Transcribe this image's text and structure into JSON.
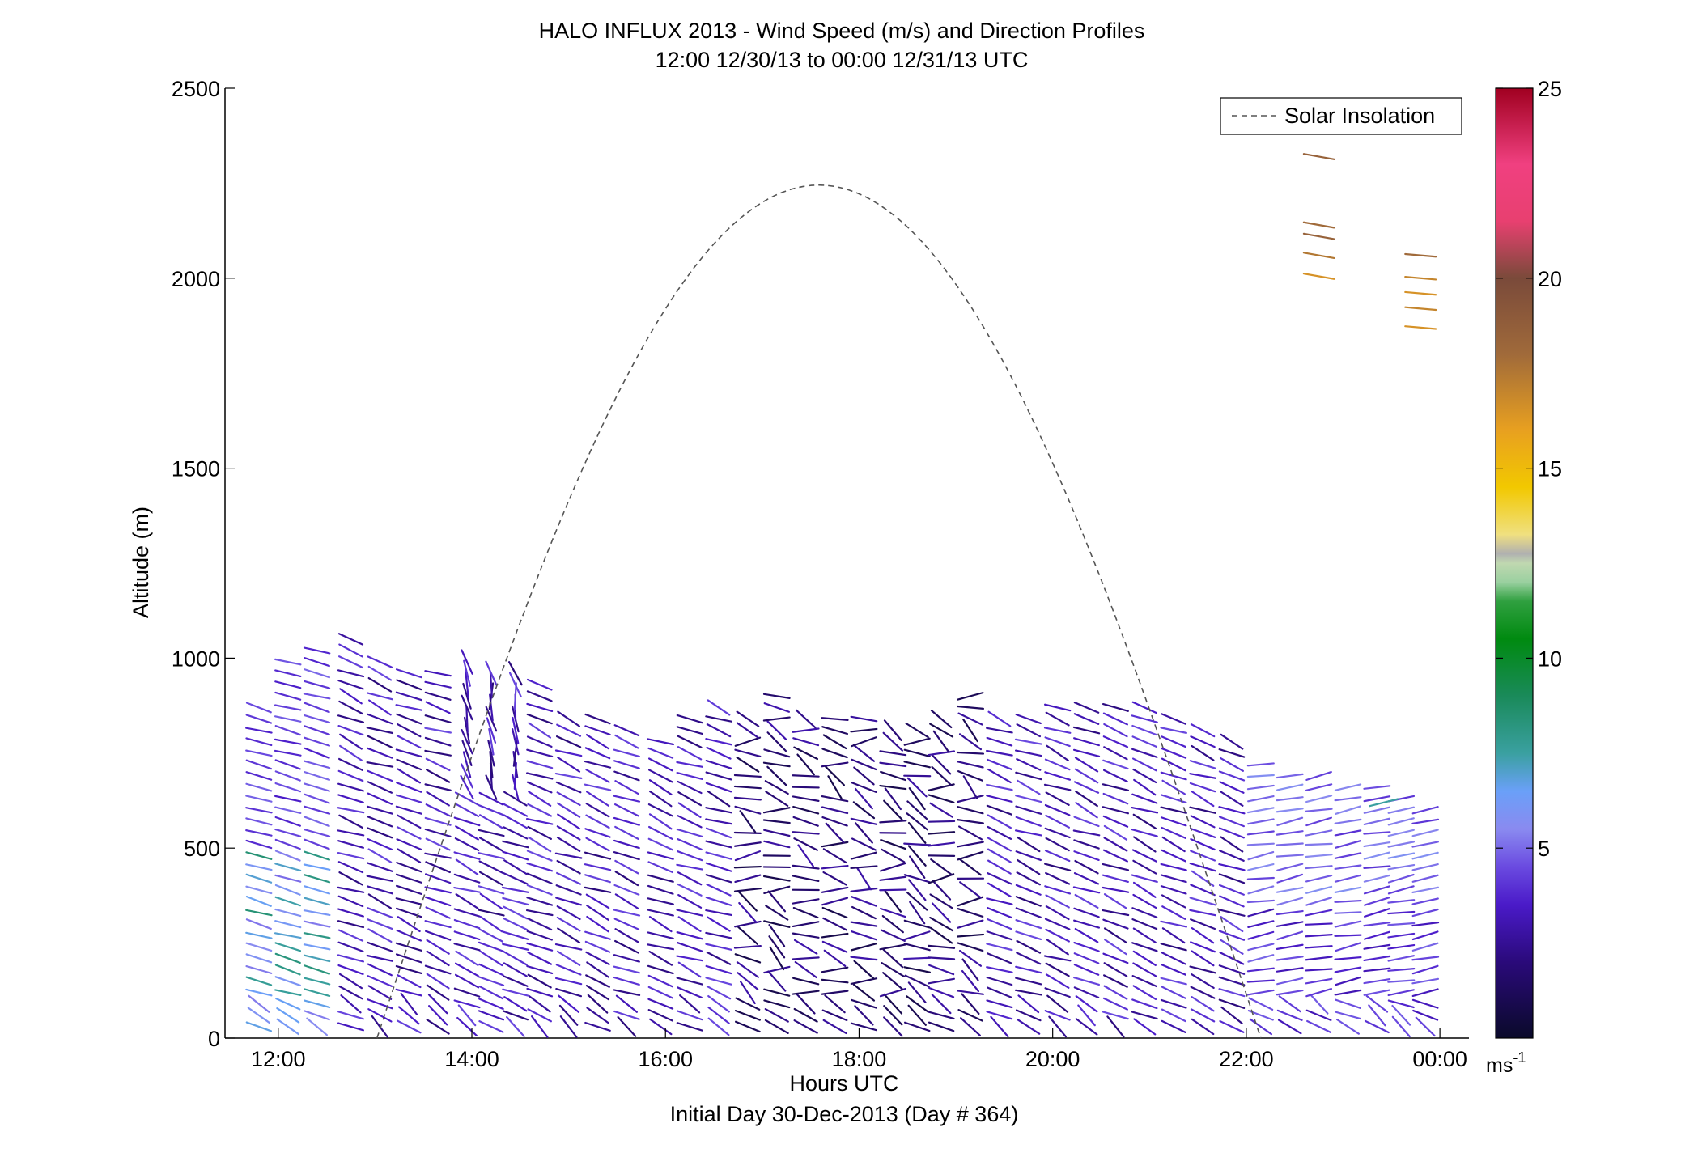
{
  "chart_data": {
    "type": "quiver",
    "title": "HALO INFLUX 2013 - Wind Speed (m/s) and Direction Profiles",
    "subtitle": "12:00 12/30/13 to 00:00 12/31/13  UTC",
    "xlabel": "Hours UTC",
    "xlabel2": "Initial Day 30-Dec-2013 (Day # 364)",
    "ylabel": "Altitude (m)",
    "xlim": [
      11.45,
      24.3
    ],
    "ylim": [
      0,
      2500
    ],
    "xticks": [
      12,
      14,
      16,
      18,
      20,
      22,
      24
    ],
    "xtick_labels": [
      "12:00",
      "14:00",
      "16:00",
      "18:00",
      "20:00",
      "22:00",
      "00:00"
    ],
    "yticks": [
      0,
      500,
      1000,
      1500,
      2000,
      2500
    ],
    "ytick_labels": [
      "0",
      "500",
      "1000",
      "1500",
      "2000",
      "2500"
    ],
    "legend": {
      "label": "Solar Insolation",
      "position": "top-right"
    },
    "colorbar": {
      "range": [
        0,
        25
      ],
      "ticks": [
        5,
        10,
        15,
        20,
        25
      ],
      "tick_labels": [
        "5",
        "10",
        "15",
        "20",
        "25"
      ],
      "unit": "ms",
      "unit_sup": "-1",
      "stops": [
        [
          0,
          "#0a0a2a"
        ],
        [
          0.08,
          "#2a0a7a"
        ],
        [
          0.14,
          "#4a1ac8"
        ],
        [
          0.18,
          "#6a4ae0"
        ],
        [
          0.22,
          "#8a8af0"
        ],
        [
          0.26,
          "#6aa0f8"
        ],
        [
          0.3,
          "#3aa0a0"
        ],
        [
          0.36,
          "#1a8a5a"
        ],
        [
          0.42,
          "#008a10"
        ],
        [
          0.46,
          "#30a040"
        ],
        [
          0.48,
          "#9ad0a0"
        ],
        [
          0.5,
          "#c0d8b0"
        ],
        [
          0.51,
          "#b0b0b0"
        ],
        [
          0.53,
          "#f0e080"
        ],
        [
          0.58,
          "#f2c800"
        ],
        [
          0.64,
          "#e8a020"
        ],
        [
          0.72,
          "#a06a3a"
        ],
        [
          0.8,
          "#7a4a3a"
        ],
        [
          0.86,
          "#e84070"
        ],
        [
          0.92,
          "#f04080"
        ],
        [
          1,
          "#a00020"
        ]
      ]
    },
    "solar_insolation": {
      "start_hour": 13.02,
      "end_hour": 22.15,
      "peak_hour": 17.58,
      "peak_altitude": 2245
    },
    "wind_profiles": {
      "times": [
        11.8,
        12.1,
        12.4,
        12.75,
        13.05,
        13.35,
        13.65,
        13.95,
        14.2,
        14.45,
        14.7,
        15.0,
        15.3,
        15.6,
        15.95,
        16.25,
        16.55,
        16.85,
        17.15,
        17.45,
        17.75,
        18.05,
        18.35,
        18.6,
        18.85,
        19.15,
        19.45,
        19.75,
        20.05,
        20.35,
        20.65,
        20.95,
        21.25,
        21.55,
        21.85,
        22.15,
        22.45,
        22.75,
        23.05,
        23.35,
        23.6,
        23.85
      ],
      "tops": [
        890,
        990,
        1020,
        1050,
        1000,
        960,
        980,
        990,
        980,
        960,
        950,
        860,
        840,
        820,
        800,
        860,
        870,
        860,
        900,
        840,
        840,
        850,
        820,
        830,
        850,
        900,
        860,
        850,
        870,
        870,
        870,
        870,
        860,
        830,
        780,
        740,
        700,
        690,
        680,
        660,
        640,
        600
      ],
      "min_altitude": 30,
      "level_step": 30,
      "note_high": "isolated barbs aloft near 22:45-23:45"
    },
    "high_barbs": [
      {
        "t": 22.75,
        "alt": 2320,
        "speed": 18.5,
        "dir": 100
      },
      {
        "t": 22.75,
        "alt": 2140,
        "speed": 18.0,
        "dir": 100
      },
      {
        "t": 22.75,
        "alt": 2110,
        "speed": 18.5,
        "dir": 100
      },
      {
        "t": 22.75,
        "alt": 2060,
        "speed": 17.5,
        "dir": 100
      },
      {
        "t": 22.75,
        "alt": 2005,
        "speed": 16.5,
        "dir": 100
      },
      {
        "t": 23.8,
        "alt": 2060,
        "speed": 18.0,
        "dir": 95
      },
      {
        "t": 23.8,
        "alt": 2000,
        "speed": 17.0,
        "dir": 95
      },
      {
        "t": 23.8,
        "alt": 1960,
        "speed": 16.5,
        "dir": 95
      },
      {
        "t": 23.8,
        "alt": 1920,
        "speed": 17.0,
        "dir": 95
      },
      {
        "t": 23.8,
        "alt": 1870,
        "speed": 16.5,
        "dir": 95
      }
    ]
  }
}
